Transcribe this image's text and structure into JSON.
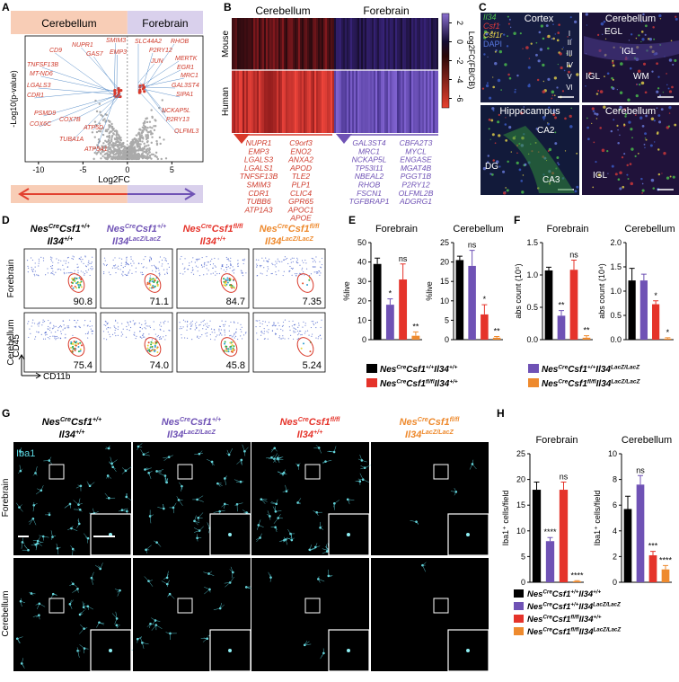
{
  "panel_labels": [
    "A",
    "B",
    "C",
    "D",
    "E",
    "F",
    "G",
    "H"
  ],
  "genotypes": [
    [
      "Nes",
      "Cre",
      "Csf1",
      "+/+",
      "Il34",
      "+/+"
    ],
    [
      "Nes",
      "Cre",
      "Csf1",
      "+/+",
      "Il34",
      "LacZ/LacZ"
    ],
    [
      "Nes",
      "Cre",
      "Csf1",
      "fl/fl",
      "Il34",
      "+/+"
    ],
    [
      "Nes",
      "Cre",
      "Csf1",
      "fl/fl",
      "Il34",
      "LacZ/LacZ"
    ]
  ],
  "volcano": {
    "regions": [
      "Cerebellum",
      "Forebrain"
    ],
    "ylabel": "-Log10(p-value)",
    "xlabel": "Log2FC",
    "xlim": [
      -11.5,
      8.5
    ],
    "xticks": [
      -10,
      -5,
      0,
      5
    ],
    "genes_left": [
      "CD9",
      "NUPR1",
      "SMIM3",
      "GAS7",
      "EMP3",
      "TNFSF13B",
      "MT-ND6",
      "LGALS3",
      "CDR1",
      "PSMD9",
      "COX6C",
      "COX7B",
      "ATP5D",
      "TUBA1A",
      "ATP5A1"
    ],
    "genes_right": [
      "SLC44A2",
      "RHOB",
      "P2RY12",
      "MERTK",
      "JUN",
      "EGR1",
      "MRC1",
      "GAL3ST4",
      "SIPA1",
      "NCKAP5L",
      "P2RY13",
      "OLFML3"
    ]
  },
  "heatmap": {
    "columns": [
      "Cerebellum",
      "Forebrain"
    ],
    "rows": [
      "Mouse",
      "Human"
    ],
    "colorbar_label": "Log2FC(FB/CB)",
    "colorbar_lim": [
      -7,
      3
    ],
    "colorbar_ticks": [
      2,
      0,
      -2,
      -4,
      -6
    ],
    "genes": [
      [
        "NUPR1",
        "EMP3",
        "LGALS3",
        "LGALS1",
        "TNFSF13B",
        "SMIM3",
        "CDR1",
        "TUBB6",
        "ATP1A3"
      ],
      [
        "C9orf3",
        "ENO2",
        "ANXA2",
        "APOD",
        "TLE2",
        "PLP1",
        "CLIC4",
        "GPR65",
        "APOC1",
        "APOE"
      ],
      [
        "GAL3ST4",
        "MRC1",
        "NCKAP5L",
        "TP53I11",
        "NBEAL2",
        "RHOB",
        "FSCN1",
        "TGFBRAP1"
      ],
      [
        "CBFA2T3",
        "MYCL",
        "ENGASE",
        "MGAT4B",
        "PGGT1B",
        "P2RY12",
        "OLFML2B",
        "ADGRG1"
      ]
    ]
  },
  "ish": {
    "stains": [
      "Il34",
      "Csf1",
      "Csf1r",
      "DAPI"
    ],
    "panels": [
      {
        "title": "Cortex",
        "labels": [
          "I",
          "II",
          "III",
          "IV",
          "V",
          "VI"
        ]
      },
      {
        "title": "Cerebellum",
        "labels": [
          "EGL",
          "IGL",
          "IGL",
          "WM"
        ]
      },
      {
        "title": "Hippocampus",
        "labels": [
          "CA2",
          "DG",
          "CA3"
        ]
      },
      {
        "title": "Cerebellum",
        "labels": [
          "IGL"
        ]
      }
    ]
  },
  "flow": {
    "rows": [
      "Forebrain",
      "Cerebellum"
    ],
    "percentages": [
      [
        "90.8",
        "71.1",
        "84.7",
        "7.35"
      ],
      [
        "75.4",
        "74.0",
        "45.8",
        "5.24"
      ]
    ],
    "yaxis": "CD45",
    "xaxis": "CD11b"
  },
  "iba1": {
    "stain": "Iba1",
    "rows": [
      "Forebrain",
      "Cerebellum"
    ]
  },
  "chart_data": [
    {
      "type": "bar",
      "title": "Forebrain",
      "ylabel": "%live",
      "ylim": [
        0,
        50
      ],
      "yticks": [
        0,
        10,
        20,
        30,
        40,
        50
      ],
      "values": [
        39,
        18,
        31,
        2
      ],
      "errors": [
        3,
        3,
        8,
        2
      ],
      "annotations": [
        null,
        "*",
        "ns",
        "**"
      ],
      "colors": [
        "#000000",
        "#6f52b5",
        "#e5332a",
        "#ee8a2e"
      ]
    },
    {
      "type": "bar",
      "title": "Cerebellum",
      "ylabel": "%live",
      "ylim": [
        0,
        25
      ],
      "yticks": [
        0,
        5,
        10,
        15,
        20,
        25
      ],
      "values": [
        20.5,
        19,
        6.5,
        0.5
      ],
      "errors": [
        1,
        4,
        2.5,
        0.3
      ],
      "annotations": [
        null,
        "ns",
        "*",
        "**"
      ],
      "colors": [
        "#000000",
        "#6f52b5",
        "#e5332a",
        "#ee8a2e"
      ]
    },
    {
      "type": "bar",
      "title": "Forebrain",
      "ylabel": "abs count (10⁵)",
      "ylim": [
        0,
        1.5
      ],
      "yticks": [
        {
          "value": 0,
          "label": "0.0"
        },
        0.5,
        {
          "value": 1,
          "label": "1.0"
        },
        1.5
      ],
      "values": [
        1.07,
        0.37,
        1.08,
        0.03
      ],
      "errors": [
        0.05,
        0.08,
        0.15,
        0.03
      ],
      "annotations": [
        null,
        "**",
        "ns",
        "**"
      ],
      "colors": [
        "#000000",
        "#6f52b5",
        "#e5332a",
        "#ee8a2e"
      ]
    },
    {
      "type": "bar",
      "title": "Cerebellum",
      "ylabel": "abs count (10⁴)",
      "ylim": [
        0,
        2
      ],
      "yticks": [
        {
          "value": 0,
          "label": "0.0"
        },
        0.5,
        {
          "value": 1,
          "label": "1.0"
        },
        1.5,
        {
          "value": 2,
          "label": "2.0"
        }
      ],
      "values": [
        1.22,
        1.22,
        0.73,
        0.02
      ],
      "errors": [
        0.25,
        0.13,
        0.07,
        0.02
      ],
      "annotations": [
        null,
        null,
        "*",
        "*"
      ],
      "colors": [
        "#000000",
        "#6f52b5",
        "#e5332a",
        "#ee8a2e"
      ]
    },
    {
      "type": "bar",
      "title": "Forebrain",
      "ylabel": "Iba1⁺ cells/field",
      "ylim": [
        0,
        25
      ],
      "yticks": [
        0,
        5,
        10,
        15,
        20,
        25
      ],
      "values": [
        18,
        8,
        18,
        0.2
      ],
      "errors": [
        1.5,
        0.7,
        1.5,
        0.1
      ],
      "annotations": [
        null,
        "****",
        "ns",
        "****"
      ],
      "colors": [
        "#000000",
        "#6f52b5",
        "#e5332a",
        "#ee8a2e"
      ]
    },
    {
      "type": "bar",
      "title": "Cerebellum",
      "ylabel": "Iba1⁺ cells/field",
      "ylim": [
        0,
        10
      ],
      "yticks": [
        0,
        2,
        4,
        6,
        8,
        10
      ],
      "values": [
        5.7,
        7.6,
        2.1,
        1.0
      ],
      "errors": [
        1.0,
        0.7,
        0.3,
        0.3
      ],
      "annotations": [
        null,
        "ns",
        "***",
        "****"
      ],
      "colors": [
        "#000000",
        "#6f52b5",
        "#e5332a",
        "#ee8a2e"
      ]
    }
  ]
}
